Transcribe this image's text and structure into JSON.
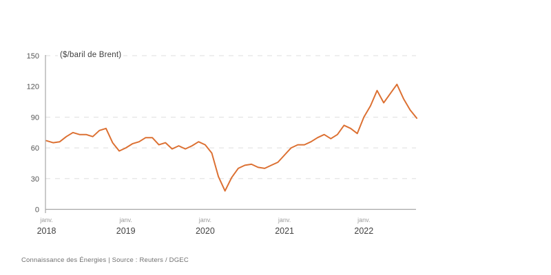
{
  "chart_data": {
    "type": "line",
    "title": "",
    "unit_label": "($/baril de Brent)",
    "ylabel": "$/baril de Brent",
    "ylim": [
      0,
      150
    ],
    "yticks": [
      150,
      120,
      90,
      60,
      30,
      0
    ],
    "gridline_values": [
      150,
      90,
      60,
      30
    ],
    "grid": "dashed-horizontal",
    "legend_position": "none",
    "frequency": "monthly",
    "x_range": {
      "start": "janv. 2018",
      "end": "sept. 2022"
    },
    "xticks": [
      {
        "month": "janv.",
        "year": "2018"
      },
      {
        "month": "janv.",
        "year": "2019"
      },
      {
        "month": "janv.",
        "year": "2020"
      },
      {
        "month": "janv.",
        "year": "2021"
      },
      {
        "month": "janv.",
        "year": "2022"
      }
    ],
    "series": [
      {
        "name": "Brent",
        "values": [
          67,
          65,
          66,
          71,
          75,
          73,
          73,
          71,
          77,
          79,
          65,
          57,
          60,
          64,
          66,
          70,
          70,
          63,
          65,
          59,
          62,
          59,
          62,
          66,
          63,
          55,
          32,
          18,
          31,
          40,
          43,
          44,
          41,
          40,
          43,
          46,
          53,
          60,
          63,
          63,
          66,
          70,
          73,
          69,
          73,
          82,
          79,
          74,
          90,
          101,
          116,
          104,
          113,
          122,
          108,
          97,
          89
        ]
      }
    ]
  },
  "footer": {
    "text": "Connaissance des Énergies | Source : Reuters / DGEC"
  },
  "colors": {
    "line": "#dc7032",
    "grid": "#dddddd",
    "axis": "#a6a6a6",
    "ytick_text": "#555555",
    "unit_text": "#3d3d3d",
    "month_text": "#9c9c9c",
    "year_text": "#414141",
    "footer_text": "#707070",
    "background": "#ffffff"
  }
}
